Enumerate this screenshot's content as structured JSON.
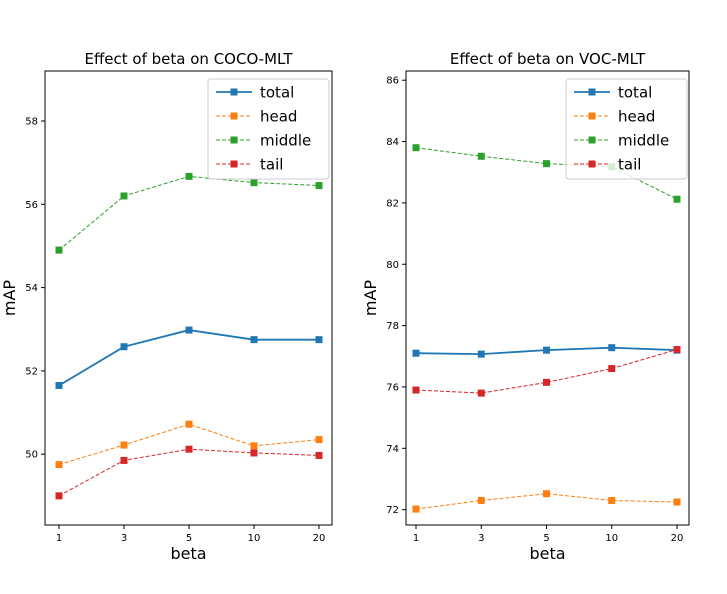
{
  "chart_data": [
    {
      "type": "line",
      "title": "Effect of beta on COCO-MLT",
      "xlabel": "beta",
      "ylabel": "mAP",
      "categories": [
        "1",
        "3",
        "5",
        "10",
        "20"
      ],
      "yticks": [
        50,
        52,
        54,
        56,
        58
      ],
      "ylim": [
        48.3,
        59.2
      ],
      "legend_position": "top-right",
      "series": [
        {
          "name": "total",
          "color": "#1f77b4",
          "style": "solid",
          "values": [
            51.65,
            52.58,
            52.98,
            52.75,
            52.75
          ]
        },
        {
          "name": "head",
          "color": "#ff7f0e",
          "style": "dashed",
          "values": [
            49.75,
            50.22,
            50.72,
            50.2,
            50.35
          ]
        },
        {
          "name": "middle",
          "color": "#2ca02c",
          "style": "dashed",
          "values": [
            54.9,
            56.2,
            56.67,
            56.52,
            56.45
          ]
        },
        {
          "name": "tail",
          "color": "#d62728",
          "style": "dashed",
          "values": [
            49.0,
            49.85,
            50.12,
            50.03,
            49.97
          ]
        }
      ]
    },
    {
      "type": "line",
      "title": "Effect of beta on VOC-MLT",
      "xlabel": "beta",
      "ylabel": "mAP",
      "categories": [
        "1",
        "3",
        "5",
        "10",
        "20"
      ],
      "yticks": [
        72,
        74,
        76,
        78,
        80,
        82,
        84,
        86
      ],
      "ylim": [
        71.5,
        86.3
      ],
      "legend_position": "top-right",
      "series": [
        {
          "name": "total",
          "color": "#1f77b4",
          "style": "solid",
          "values": [
            77.1,
            77.07,
            77.2,
            77.28,
            77.2
          ]
        },
        {
          "name": "head",
          "color": "#ff7f0e",
          "style": "dashed",
          "values": [
            72.02,
            72.3,
            72.52,
            72.3,
            72.25
          ]
        },
        {
          "name": "middle",
          "color": "#2ca02c",
          "style": "dashed",
          "values": [
            83.8,
            83.52,
            83.28,
            83.18,
            82.12
          ]
        },
        {
          "name": "tail",
          "color": "#d62728",
          "style": "dashed",
          "values": [
            75.9,
            75.8,
            76.15,
            76.6,
            77.22
          ]
        }
      ]
    }
  ]
}
